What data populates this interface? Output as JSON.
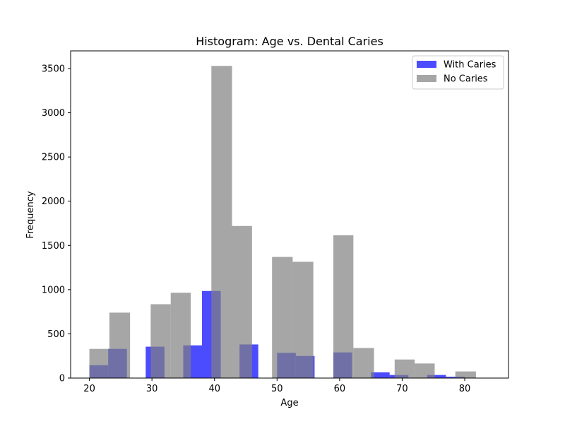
{
  "chart_data": {
    "type": "bar",
    "title": "Histogram: Age vs. Dental Caries",
    "xlabel": "Age",
    "ylabel": "Frequency",
    "xlim": [
      17,
      87
    ],
    "ylim": [
      0,
      3700
    ],
    "xticks": [
      20,
      30,
      40,
      50,
      60,
      70,
      80
    ],
    "yticks": [
      0,
      500,
      1000,
      1500,
      2000,
      2500,
      3000,
      3500
    ],
    "grid": false,
    "legend_position": "top-right",
    "series": [
      {
        "name": "With Caries",
        "color": "#0000ff",
        "opacity": 0.7,
        "bins": [
          {
            "start": 20.0,
            "end": 23.0,
            "value": 145
          },
          {
            "start": 23.0,
            "end": 26.0,
            "value": 330
          },
          {
            "start": 29.0,
            "end": 32.0,
            "value": 355
          },
          {
            "start": 35.0,
            "end": 38.0,
            "value": 370
          },
          {
            "start": 38.0,
            "end": 41.0,
            "value": 985
          },
          {
            "start": 44.0,
            "end": 47.0,
            "value": 380
          },
          {
            "start": 50.0,
            "end": 53.0,
            "value": 285
          },
          {
            "start": 53.0,
            "end": 56.0,
            "value": 250
          },
          {
            "start": 59.0,
            "end": 62.0,
            "value": 290
          },
          {
            "start": 65.0,
            "end": 68.0,
            "value": 65
          },
          {
            "start": 68.0,
            "end": 71.0,
            "value": 35
          },
          {
            "start": 74.0,
            "end": 77.0,
            "value": 35
          },
          {
            "start": 77.0,
            "end": 80.0,
            "value": 15
          }
        ]
      },
      {
        "name": "No Caries",
        "color": "#808080",
        "opacity": 0.7,
        "bins": [
          {
            "start": 20.0,
            "end": 23.2,
            "value": 330
          },
          {
            "start": 23.2,
            "end": 26.5,
            "value": 740
          },
          {
            "start": 26.5,
            "end": 29.8,
            "value": 0
          },
          {
            "start": 29.8,
            "end": 33.0,
            "value": 835
          },
          {
            "start": 33.0,
            "end": 36.2,
            "value": 965
          },
          {
            "start": 36.2,
            "end": 39.5,
            "value": 0
          },
          {
            "start": 39.5,
            "end": 42.8,
            "value": 3530
          },
          {
            "start": 42.8,
            "end": 46.0,
            "value": 1720
          },
          {
            "start": 46.0,
            "end": 49.2,
            "value": 0
          },
          {
            "start": 49.2,
            "end": 52.5,
            "value": 1370
          },
          {
            "start": 52.5,
            "end": 55.8,
            "value": 1315
          },
          {
            "start": 55.8,
            "end": 59.0,
            "value": 0
          },
          {
            "start": 59.0,
            "end": 62.2,
            "value": 1615
          },
          {
            "start": 62.2,
            "end": 65.5,
            "value": 340
          },
          {
            "start": 65.5,
            "end": 68.8,
            "value": 0
          },
          {
            "start": 68.8,
            "end": 72.0,
            "value": 210
          },
          {
            "start": 72.0,
            "end": 75.2,
            "value": 165
          },
          {
            "start": 75.2,
            "end": 78.5,
            "value": 0
          },
          {
            "start": 78.5,
            "end": 81.8,
            "value": 75
          }
        ]
      }
    ]
  }
}
